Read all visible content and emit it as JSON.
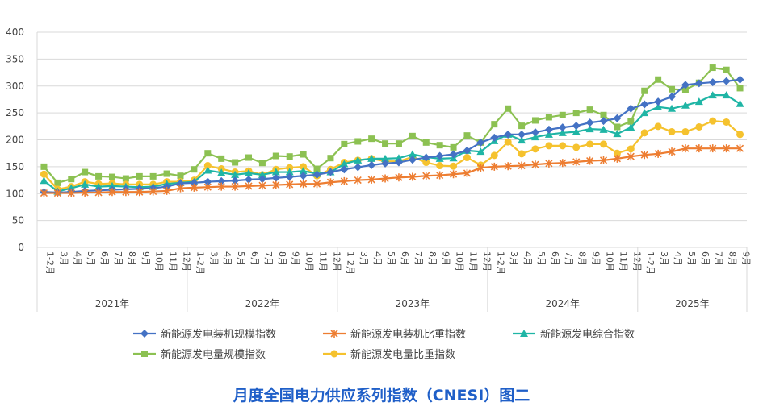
{
  "chart_data": {
    "type": "line",
    "title": "月度全国电力供应系列指数（CNESI）图二",
    "ylim": [
      0,
      400
    ],
    "yticks": [
      0,
      50,
      100,
      150,
      200,
      250,
      300,
      350,
      400
    ],
    "grid": true,
    "legend_position": "bottom",
    "years": [
      {
        "label": "2021年",
        "months": [
          "1-2月",
          "3月",
          "4月",
          "5月",
          "6月",
          "7月",
          "8月",
          "9月",
          "10月",
          "11月",
          "12月"
        ]
      },
      {
        "label": "2022年",
        "months": [
          "1-2月",
          "3月",
          "4月",
          "5月",
          "6月",
          "7月",
          "8月",
          "9月",
          "10月",
          "11月",
          "12月"
        ]
      },
      {
        "label": "2023年",
        "months": [
          "1-2月",
          "3月",
          "4月",
          "5月",
          "6月",
          "7月",
          "8月",
          "9月",
          "10月",
          "11月",
          "12月"
        ]
      },
      {
        "label": "2024年",
        "months": [
          "1-2月",
          "3月",
          "4月",
          "5月",
          "6月",
          "7月",
          "8月",
          "9月",
          "10月",
          "11月",
          "12月"
        ]
      },
      {
        "label": "2025年",
        "months": [
          "1-2月",
          "3月",
          "4月",
          "5月",
          "6月",
          "7月",
          "8月",
          "9月"
        ]
      }
    ],
    "series": [
      {
        "name": "新能源发电装机规模指数",
        "color": "#4472c4",
        "marker": "diamond",
        "values": [
          103,
          102,
          103,
          105,
          106,
          107,
          108,
          109,
          110,
          113,
          119,
          120,
          122,
          123,
          124,
          126,
          127,
          129,
          131,
          133,
          135,
          140,
          145,
          149,
          153,
          156,
          158,
          163,
          167,
          170,
          173,
          180,
          195,
          204,
          210,
          210,
          214,
          219,
          223,
          226,
          232,
          235,
          240,
          258,
          266,
          271,
          280,
          302,
          305,
          307,
          309,
          312
        ]
      },
      {
        "name": "新能源发电装机比重指数",
        "color": "#ed7d31",
        "marker": "star",
        "values": [
          101,
          101,
          101,
          102,
          102,
          103,
          103,
          103,
          104,
          105,
          110,
          111,
          112,
          113,
          113,
          114,
          115,
          116,
          117,
          118,
          118,
          121,
          123,
          125,
          126,
          128,
          130,
          131,
          133,
          134,
          136,
          138,
          148,
          150,
          151,
          152,
          154,
          156,
          157,
          159,
          161,
          162,
          165,
          169,
          172,
          174,
          178,
          184,
          184,
          184,
          184,
          184
        ]
      },
      {
        "name": "新能源发电综合指数",
        "color": "#1fb5a5",
        "marker": "triangle",
        "values": [
          124,
          104,
          110,
          117,
          113,
          114,
          113,
          112,
          113,
          118,
          120,
          122,
          143,
          139,
          135,
          138,
          135,
          140,
          140,
          142,
          137,
          140,
          155,
          162,
          165,
          165,
          166,
          173,
          168,
          165,
          166,
          180,
          178,
          198,
          210,
          199,
          205,
          210,
          213,
          215,
          220,
          219,
          211,
          223,
          250,
          261,
          258,
          264,
          271,
          283,
          283,
          267
        ]
      },
      {
        "name": "新能源发电量规模指数",
        "color": "#8cc152",
        "marker": "square",
        "values": [
          150,
          120,
          127,
          140,
          132,
          131,
          128,
          132,
          132,
          137,
          133,
          145,
          175,
          165,
          158,
          167,
          157,
          170,
          169,
          173,
          146,
          166,
          192,
          197,
          202,
          193,
          193,
          207,
          195,
          190,
          186,
          208,
          195,
          229,
          258,
          226,
          236,
          242,
          246,
          250,
          256,
          246,
          224,
          234,
          291,
          312,
          294,
          293,
          306,
          334,
          330,
          296
        ]
      },
      {
        "name": "新能源发电量比重指数",
        "color": "#f5c22e",
        "marker": "circle",
        "values": [
          136,
          108,
          113,
          122,
          118,
          119,
          117,
          117,
          117,
          122,
          122,
          125,
          152,
          146,
          140,
          142,
          135,
          145,
          148,
          150,
          133,
          145,
          158,
          162,
          165,
          160,
          160,
          168,
          158,
          152,
          151,
          167,
          153,
          171,
          196,
          174,
          183,
          189,
          189,
          186,
          192,
          192,
          175,
          183,
          213,
          225,
          215,
          215,
          224,
          235,
          233,
          210
        ]
      }
    ]
  }
}
